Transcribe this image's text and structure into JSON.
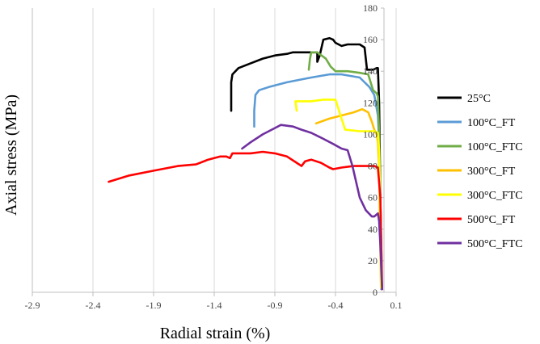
{
  "chart_data": {
    "type": "line",
    "title": "",
    "xlabel": "Radial strain (%)",
    "ylabel": "Axial stress (MPa)",
    "xlim": [
      -2.9,
      0.1
    ],
    "ylim": [
      0,
      180
    ],
    "x_ticks": [
      -2.9,
      -2.4,
      -1.9,
      -1.4,
      -0.9,
      -0.4,
      0.1
    ],
    "x_tick_labels": [
      "-2.9",
      "-2.4",
      "-1.9",
      "-1.4",
      "-0.9",
      "-0.4",
      "0.1"
    ],
    "y_ticks": [
      0,
      20,
      40,
      60,
      80,
      100,
      120,
      140,
      160,
      180
    ],
    "y_tick_labels": [
      "0",
      "20",
      "40",
      "60",
      "80",
      "100",
      "120",
      "140",
      "160",
      "180"
    ],
    "grid": true,
    "legend_position": "right",
    "series": [
      {
        "name": "25°C",
        "color": "#000000",
        "points": [
          [
            -1.26,
            115
          ],
          [
            -1.26,
            133
          ],
          [
            -1.25,
            138
          ],
          [
            -1.2,
            142
          ],
          [
            -1.1,
            145
          ],
          [
            -1.0,
            148
          ],
          [
            -0.9,
            150
          ],
          [
            -0.8,
            151
          ],
          [
            -0.75,
            152
          ],
          [
            -0.7,
            152
          ],
          [
            -0.6,
            152
          ],
          [
            -0.55,
            152
          ],
          [
            -0.55,
            146
          ],
          [
            -0.53,
            150
          ],
          [
            -0.5,
            160
          ],
          [
            -0.45,
            161
          ],
          [
            -0.42,
            160
          ],
          [
            -0.4,
            158
          ],
          [
            -0.35,
            156
          ],
          [
            -0.3,
            157
          ],
          [
            -0.2,
            157
          ],
          [
            -0.16,
            155
          ],
          [
            -0.14,
            141
          ],
          [
            -0.09,
            141
          ],
          [
            -0.06,
            142
          ],
          [
            -0.05,
            142
          ],
          [
            -0.04,
            120
          ],
          [
            -0.03,
            60
          ],
          [
            -0.02,
            10
          ],
          [
            -0.02,
            2
          ]
        ]
      },
      {
        "name": "100°C_FT",
        "color": "#5b9bd5",
        "points": [
          [
            -1.07,
            105
          ],
          [
            -1.07,
            115
          ],
          [
            -1.06,
            125
          ],
          [
            -1.03,
            128
          ],
          [
            -0.95,
            130
          ],
          [
            -0.8,
            133
          ],
          [
            -0.6,
            136
          ],
          [
            -0.45,
            138
          ],
          [
            -0.35,
            138
          ],
          [
            -0.2,
            136
          ],
          [
            -0.12,
            130
          ],
          [
            -0.08,
            125
          ],
          [
            -0.05,
            112
          ],
          [
            -0.04,
            95
          ],
          [
            -0.03,
            60
          ],
          [
            -0.02,
            20
          ],
          [
            -0.02,
            2
          ]
        ]
      },
      {
        "name": "100°C_FTC",
        "color": "#70ad47",
        "points": [
          [
            -0.62,
            141
          ],
          [
            -0.61,
            148
          ],
          [
            -0.6,
            152
          ],
          [
            -0.55,
            152
          ],
          [
            -0.48,
            148
          ],
          [
            -0.44,
            143
          ],
          [
            -0.4,
            140
          ],
          [
            -0.3,
            140
          ],
          [
            -0.2,
            139
          ],
          [
            -0.13,
            138
          ],
          [
            -0.09,
            128
          ],
          [
            -0.06,
            126
          ],
          [
            -0.05,
            124
          ],
          [
            -0.04,
            100
          ],
          [
            -0.03,
            50
          ],
          [
            -0.025,
            5
          ]
        ]
      },
      {
        "name": "300°C_FT",
        "color": "#ffc000",
        "points": [
          [
            -0.56,
            107
          ],
          [
            -0.45,
            110
          ],
          [
            -0.35,
            112
          ],
          [
            -0.25,
            114
          ],
          [
            -0.18,
            116
          ],
          [
            -0.13,
            114
          ],
          [
            -0.1,
            108
          ],
          [
            -0.08,
            103
          ],
          [
            -0.06,
            100
          ],
          [
            -0.05,
            95
          ],
          [
            -0.04,
            80
          ],
          [
            -0.03,
            30
          ],
          [
            -0.025,
            3
          ]
        ]
      },
      {
        "name": "300°C_FTC",
        "color": "#ffff00",
        "points": [
          [
            -0.72,
            115
          ],
          [
            -0.73,
            121
          ],
          [
            -0.6,
            121
          ],
          [
            -0.5,
            122
          ],
          [
            -0.4,
            122
          ],
          [
            -0.35,
            110
          ],
          [
            -0.32,
            103
          ],
          [
            -0.2,
            102
          ],
          [
            -0.08,
            102
          ],
          [
            -0.05,
            101
          ],
          [
            -0.04,
            90
          ],
          [
            -0.03,
            50
          ],
          [
            -0.025,
            3
          ]
        ]
      },
      {
        "name": "500°C_FT",
        "color": "#ff0000",
        "points": [
          [
            -2.27,
            70
          ],
          [
            -2.1,
            74
          ],
          [
            -1.9,
            77
          ],
          [
            -1.7,
            80
          ],
          [
            -1.55,
            81
          ],
          [
            -1.45,
            84
          ],
          [
            -1.35,
            86
          ],
          [
            -1.3,
            86
          ],
          [
            -1.27,
            85
          ],
          [
            -1.25,
            88
          ],
          [
            -1.1,
            88
          ],
          [
            -1.0,
            89
          ],
          [
            -0.9,
            88
          ],
          [
            -0.8,
            86
          ],
          [
            -0.72,
            82
          ],
          [
            -0.68,
            80
          ],
          [
            -0.65,
            83
          ],
          [
            -0.6,
            84
          ],
          [
            -0.52,
            82
          ],
          [
            -0.45,
            79
          ],
          [
            -0.42,
            78
          ],
          [
            -0.35,
            79
          ],
          [
            -0.25,
            80
          ],
          [
            -0.15,
            80
          ],
          [
            -0.08,
            80
          ],
          [
            -0.05,
            79
          ],
          [
            -0.03,
            60
          ],
          [
            -0.02,
            20
          ],
          [
            -0.015,
            2
          ]
        ]
      },
      {
        "name": "500°C_FTC",
        "color": "#7030a0",
        "points": [
          [
            -1.17,
            91
          ],
          [
            -1.1,
            95
          ],
          [
            -1.0,
            100
          ],
          [
            -0.9,
            104
          ],
          [
            -0.85,
            106
          ],
          [
            -0.75,
            105
          ],
          [
            -0.68,
            103
          ],
          [
            -0.6,
            101
          ],
          [
            -0.52,
            98
          ],
          [
            -0.42,
            94
          ],
          [
            -0.35,
            91
          ],
          [
            -0.3,
            90
          ],
          [
            -0.28,
            85
          ],
          [
            -0.26,
            80
          ],
          [
            -0.2,
            60
          ],
          [
            -0.15,
            52
          ],
          [
            -0.1,
            48
          ],
          [
            -0.08,
            48
          ],
          [
            -0.05,
            50
          ],
          [
            -0.04,
            45
          ],
          [
            -0.03,
            30
          ],
          [
            -0.02,
            10
          ],
          [
            -0.015,
            2
          ]
        ]
      }
    ]
  }
}
